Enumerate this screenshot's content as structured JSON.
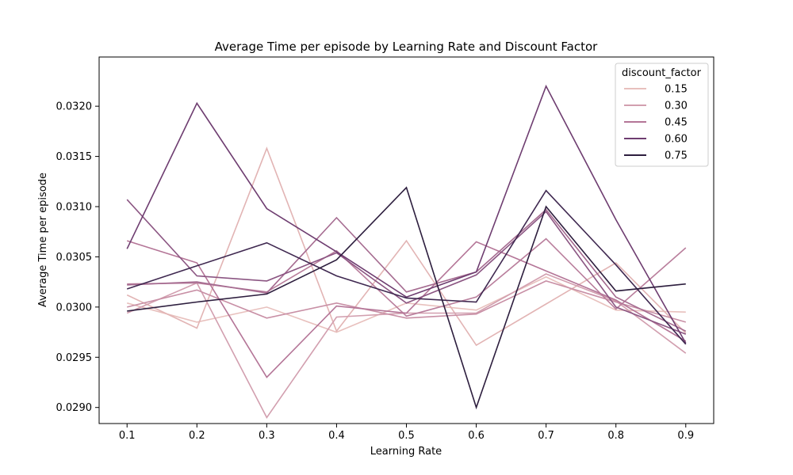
{
  "chart_data": {
    "type": "line",
    "title": "Average Time per episode by Learning Rate and Discount Factor",
    "xlabel": "Learning Rate",
    "ylabel": "Average Time per episode",
    "x": [
      0.1,
      0.2,
      0.3,
      0.4,
      0.5,
      0.6,
      0.7,
      0.8,
      0.9
    ],
    "x_ticks": [
      "0.1",
      "0.2",
      "0.3",
      "0.4",
      "0.5",
      "0.6",
      "0.7",
      "0.8",
      "0.9"
    ],
    "xlim": [
      0.06,
      0.94
    ],
    "y_ticks": [
      "0.0290",
      "0.0295",
      "0.0300",
      "0.0305",
      "0.0310",
      "0.0315",
      "0.0320"
    ],
    "y_tick_values": [
      0.029,
      0.0295,
      0.03,
      0.0305,
      0.031,
      0.0315,
      0.032
    ],
    "ylim": [
      0.02884,
      0.03249
    ],
    "grid": false,
    "legend_title": "discount_factor",
    "legend_position": "top-right",
    "series": [
      {
        "name": "0.15",
        "color": "#e8c0bd",
        "values": [
          0.03004,
          0.02985,
          0.03,
          0.02975,
          0.03004,
          0.02997,
          0.0303,
          0.02997,
          0.02995
        ]
      },
      {
        "name": "0.15",
        "color": "#e2b4b4",
        "values": [
          0.03012,
          0.02979,
          0.03158,
          0.02976,
          0.03066,
          0.02962,
          0.03003,
          0.03044,
          0.02974
        ]
      },
      {
        "name": "0.30",
        "color": "#d29faf",
        "values": [
          0.02994,
          0.03024,
          0.0289,
          0.0299,
          0.02994,
          0.02994,
          0.03033,
          0.03006,
          0.02954
        ]
      },
      {
        "name": "0.30",
        "color": "#c88fa5",
        "values": [
          0.03,
          0.03017,
          0.02989,
          0.03004,
          0.02989,
          0.02993,
          0.03026,
          0.03005,
          0.02985
        ]
      },
      {
        "name": "0.30",
        "color": "#b97e9c",
        "values": [
          0.03023,
          0.03024,
          0.03015,
          0.03056,
          0.02991,
          0.0301,
          0.03068,
          0.02998,
          0.03059
        ]
      },
      {
        "name": "0.45",
        "color": "#b47597",
        "values": [
          0.03066,
          0.03044,
          0.0293,
          0.03001,
          0.02994,
          0.03065,
          0.03036,
          0.03007,
          0.02966
        ]
      },
      {
        "name": "0.45",
        "color": "#a56b90",
        "values": [
          0.03022,
          0.03025,
          0.03014,
          0.03089,
          0.03015,
          0.03035,
          0.03097,
          0.0301,
          0.02976
        ]
      },
      {
        "name": "0.60",
        "color": "#8b5582",
        "values": [
          0.03107,
          0.03031,
          0.03026,
          0.03054,
          0.03004,
          0.03032,
          0.03095,
          0.03,
          0.02973
        ]
      },
      {
        "name": "0.60",
        "color": "#6e3d70",
        "values": [
          0.03058,
          0.03203,
          0.03098,
          0.03055,
          0.0301,
          0.03035,
          0.0322,
          0.03087,
          0.02964
        ]
      },
      {
        "name": "0.75",
        "color": "#3f2850",
        "values": [
          0.03018,
          0.03041,
          0.03064,
          0.03031,
          0.03009,
          0.03005,
          0.03116,
          0.03042,
          0.02963
        ]
      },
      {
        "name": "0.75",
        "color": "#2d1e3e",
        "values": [
          0.02996,
          0.03005,
          0.03013,
          0.03047,
          0.03119,
          0.029,
          0.031,
          0.03016,
          0.03023
        ]
      }
    ],
    "legend_entries": [
      {
        "label": "0.15",
        "color": "#e8c0bd"
      },
      {
        "label": "0.30",
        "color": "#d29faf"
      },
      {
        "label": "0.45",
        "color": "#b47597"
      },
      {
        "label": "0.60",
        "color": "#6e3d70"
      },
      {
        "label": "0.75",
        "color": "#2d1e3e"
      }
    ]
  }
}
